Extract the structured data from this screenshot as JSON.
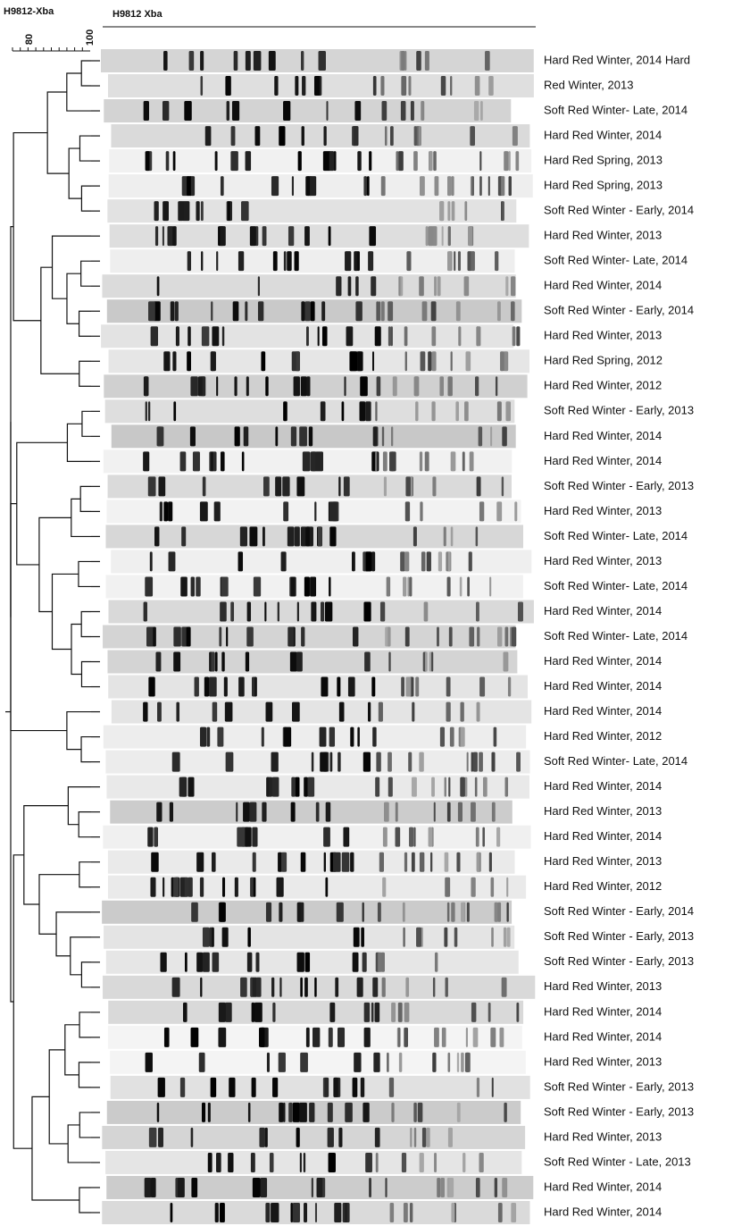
{
  "header": {
    "left_title": "H9812-Xba",
    "gel_title": "H9812 Xba",
    "scale_labels": [
      "80",
      "100"
    ]
  },
  "lanes": [
    {
      "label": "Hard Red Winter, 2014 Hard"
    },
    {
      "label": "Red Winter, 2013"
    },
    {
      "label": "Soft Red Winter- Late, 2014"
    },
    {
      "label": "Hard Red Winter, 2014"
    },
    {
      "label": "Hard Red Spring, 2013"
    },
    {
      "label": "Hard Red Spring, 2013"
    },
    {
      "label": "Soft Red Winter - Early, 2014"
    },
    {
      "label": "Hard Red Winter, 2013"
    },
    {
      "label": "Soft Red Winter- Late, 2014"
    },
    {
      "label": "Hard Red Winter, 2014"
    },
    {
      "label": "Soft Red Winter - Early, 2014"
    },
    {
      "label": "Hard Red Winter, 2013"
    },
    {
      "label": "Hard Red Spring, 2012"
    },
    {
      "label": "Hard Red Winter, 2012"
    },
    {
      "label": "Soft Red Winter - Early, 2013"
    },
    {
      "label": "Hard Red Winter, 2014"
    },
    {
      "label": "Hard Red Winter, 2014"
    },
    {
      "label": "Soft Red Winter - Early, 2013"
    },
    {
      "label": "Hard Red Winter, 2013"
    },
    {
      "label": "Soft Red Winter- Late, 2014"
    },
    {
      "label": "Hard Red Winter, 2013"
    },
    {
      "label": "Soft Red Winter- Late, 2014"
    },
    {
      "label": "Hard Red Winter, 2014"
    },
    {
      "label": "Soft Red Winter- Late, 2014"
    },
    {
      "label": "Hard Red Winter, 2014"
    },
    {
      "label": "Hard Red Winter, 2014"
    },
    {
      "label": "Hard Red Winter, 2014"
    },
    {
      "label": "Hard Red Winter, 2012"
    },
    {
      "label": "Soft Red Winter- Late, 2014"
    },
    {
      "label": "Hard Red Winter, 2014"
    },
    {
      "label": "Hard Red Winter, 2013"
    },
    {
      "label": "Hard Red Winter, 2014"
    },
    {
      "label": "Hard Red Winter, 2013"
    },
    {
      "label": "Hard Red Winter, 2012"
    },
    {
      "label": "Soft Red Winter - Early, 2014"
    },
    {
      "label": "Soft Red Winter - Early, 2013"
    },
    {
      "label": "Soft Red Winter - Early, 2013"
    },
    {
      "label": "Hard Red Winter, 2013"
    },
    {
      "label": "Hard Red Winter, 2014"
    },
    {
      "label": "Hard Red Winter, 2014"
    },
    {
      "label": "Hard Red Winter, 2013"
    },
    {
      "label": "Soft Red Winter - Early, 2013"
    },
    {
      "label": "Soft Red Winter - Early, 2013"
    },
    {
      "label": "Hard Red Winter, 2013"
    },
    {
      "label": "Soft Red Winter - Late, 2013"
    },
    {
      "label": "Hard Red Winter, 2014"
    },
    {
      "label": "Hard Red Winter, 2014"
    }
  ]
}
